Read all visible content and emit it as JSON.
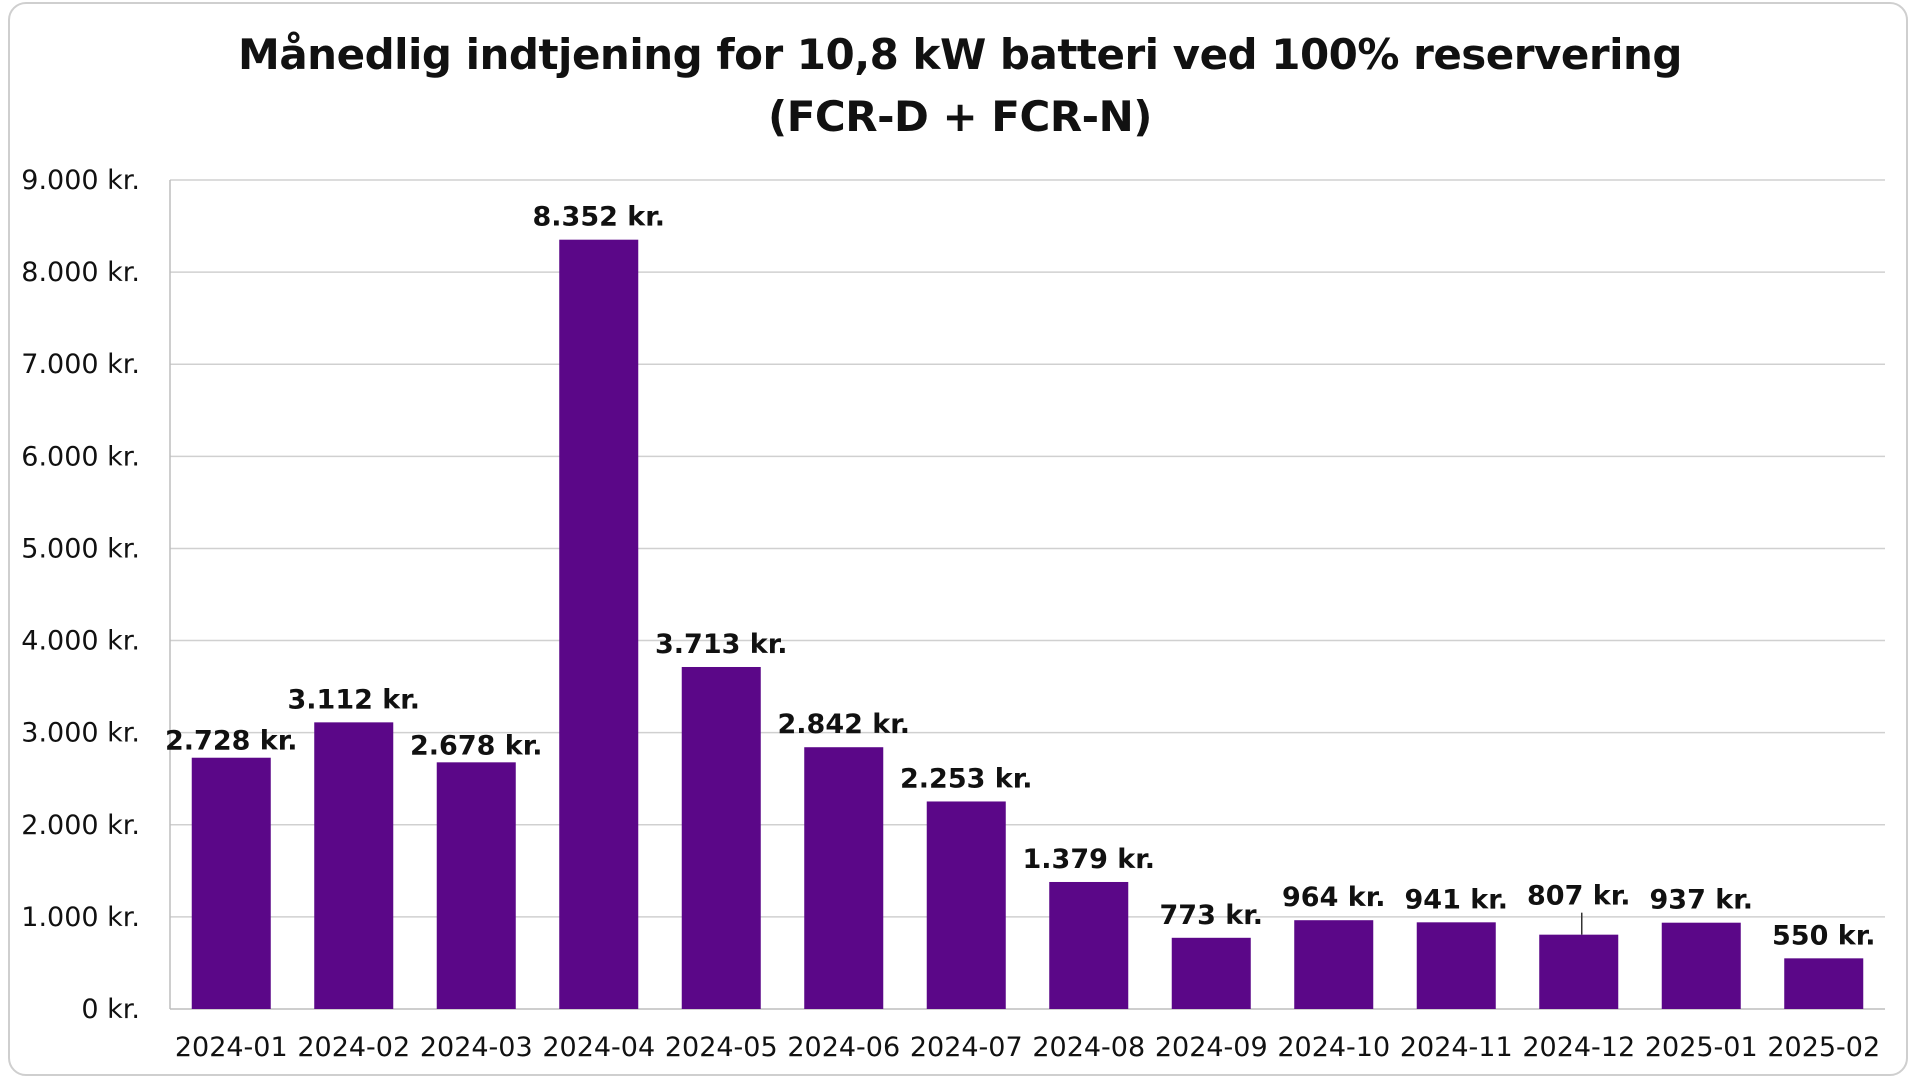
{
  "chart_data": {
    "type": "bar",
    "title": [
      "Månedlig indtjening for 10,8 kW batteri ved 100% reservering",
      "(FCR-D + FCR-N)"
    ],
    "categories": [
      "2024-01",
      "2024-02",
      "2024-03",
      "2024-04",
      "2024-05",
      "2024-06",
      "2024-07",
      "2024-08",
      "2024-09",
      "2024-10",
      "2024-11",
      "2024-12",
      "2025-01",
      "2025-02"
    ],
    "values": [
      2728,
      3112,
      2678,
      8352,
      3713,
      2842,
      2253,
      1379,
      773,
      964,
      941,
      807,
      937,
      550
    ],
    "data_labels": [
      "2.728 kr.",
      "3.112 kr.",
      "2.678 kr.",
      "8.352 kr.",
      "3.713 kr.",
      "2.842 kr.",
      "2.253 kr.",
      "1.379 kr.",
      "773 kr.",
      "964 kr.",
      "941 kr.",
      "807 kr.",
      "937 kr.",
      "550 kr."
    ],
    "ylim": [
      0,
      9000
    ],
    "yticks": [
      0,
      1000,
      2000,
      3000,
      4000,
      5000,
      6000,
      7000,
      8000,
      9000
    ],
    "ytick_labels": [
      "0 kr.",
      "1.000 kr.",
      "2.000 kr.",
      "3.000 kr.",
      "4.000 kr.",
      "5.000 kr.",
      "6.000 kr.",
      "7.000 kr.",
      "8.000 kr.",
      "9.000 kr."
    ],
    "xlabel": "",
    "ylabel": "",
    "grid": true,
    "bar_color": "#5b0788",
    "grid_color": "#d0d0d0"
  }
}
